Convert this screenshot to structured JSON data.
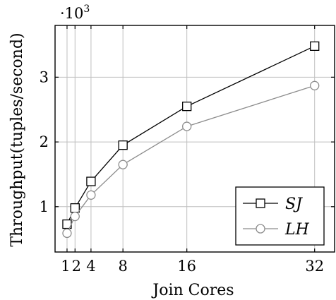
{
  "chart_data": {
    "type": "line",
    "title": "",
    "xlabel": "Join Cores",
    "ylabel": "Throughput(tuples/second)",
    "y_multiplier_label": "·10",
    "y_multiplier_exponent": "3",
    "xlim": [
      -0.5,
      34.5
    ],
    "ylim": [
      0.3,
      3.8
    ],
    "x_ticks": [
      1,
      2,
      4,
      8,
      16,
      32
    ],
    "x_tick_labels": [
      "1",
      "2",
      "4",
      "8",
      "16",
      "32"
    ],
    "y_ticks": [
      1,
      2,
      3
    ],
    "y_tick_labels": [
      "1",
      "2",
      "3"
    ],
    "grid": true,
    "legend_position": "bottom-right",
    "series": [
      {
        "name": "SJ",
        "color": "#000000",
        "marker": "square",
        "x": [
          1,
          2,
          4,
          8,
          16,
          32
        ],
        "values": [
          0.73,
          0.98,
          1.39,
          1.95,
          2.55,
          3.48
        ]
      },
      {
        "name": "LH",
        "color": "#8c8c8c",
        "marker": "circle",
        "x": [
          1,
          2,
          4,
          8,
          16,
          32
        ],
        "values": [
          0.59,
          0.85,
          1.18,
          1.65,
          2.24,
          2.87
        ]
      }
    ]
  }
}
